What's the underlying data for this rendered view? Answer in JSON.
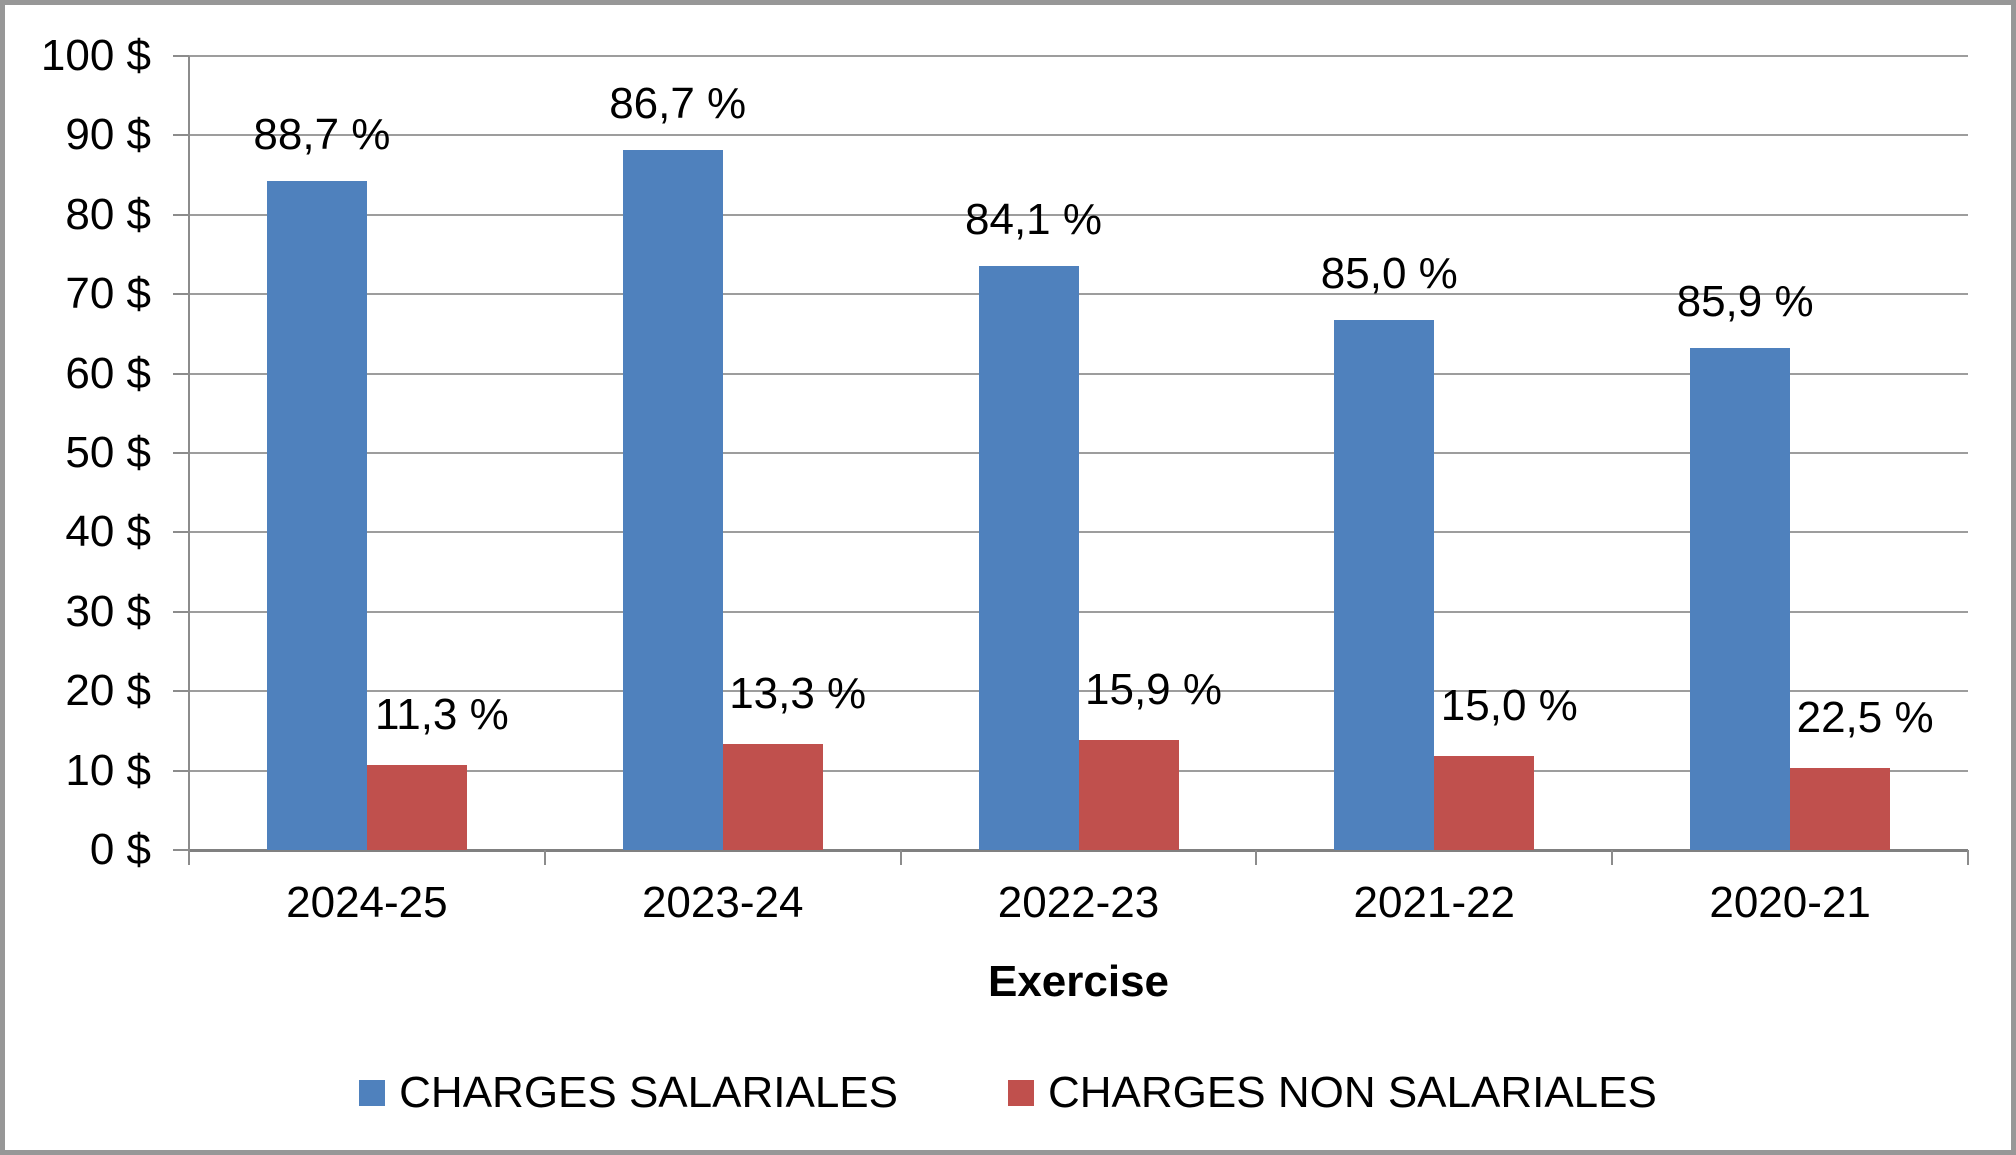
{
  "chart_data": {
    "type": "bar",
    "title": "",
    "xlabel": "Exercise",
    "ylabel": "",
    "categories": [
      "2024-25",
      "2023-24",
      "2022-23",
      "2021-22",
      "2020-21"
    ],
    "series": [
      {
        "name": "CHARGES SALARIALES",
        "color": "#4F81BD",
        "values": [
          84.2,
          88.1,
          73.6,
          66.7,
          63.2
        ],
        "data_labels": [
          "88,7 %",
          "86,7 %",
          "84,1 %",
          "85,0 %",
          "85,9 %"
        ]
      },
      {
        "name": "CHARGES NON SALARIALES",
        "color": "#C0504D",
        "values": [
          10.7,
          13.4,
          13.9,
          11.8,
          10.3
        ],
        "data_labels": [
          "11,3 %",
          "13,3 %",
          "15,9 %",
          "15,0 %",
          "22,5 %"
        ]
      }
    ],
    "y_axis": {
      "min": 0,
      "max": 100,
      "step": 10,
      "tick_labels": [
        "100 $",
        "90 $",
        "80 $",
        "70 $",
        "60 $",
        "50 $",
        "40 $",
        "30 $",
        "20 $",
        "10 $",
        "0 $"
      ]
    },
    "grid": true,
    "legend_position": "bottom",
    "colors": {
      "gridline": "#9d9d9d",
      "axis": "#8c8c8c",
      "baseline": "#808080",
      "frame_border": "#979797",
      "text": "#000000"
    }
  }
}
